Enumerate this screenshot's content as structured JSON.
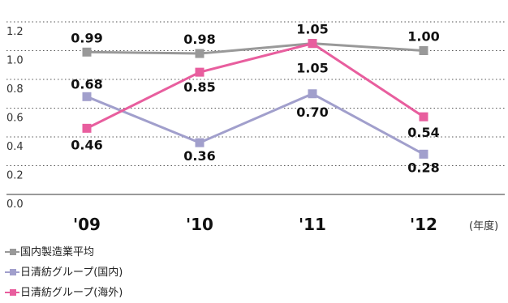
{
  "chart_data": {
    "type": "line",
    "categories": [
      "'09",
      "'10",
      "'11",
      "'12"
    ],
    "unit_label": "(年度)",
    "ylim": [
      0.0,
      1.2
    ],
    "yticks": [
      "0.0",
      "0.2",
      "0.4",
      "0.6",
      "0.8",
      "1.0",
      "1.2"
    ],
    "grid": true,
    "legend_position": "bottom-left",
    "series": [
      {
        "name": "国内製造業平均",
        "color": "#999999",
        "values": [
          0.99,
          0.98,
          1.05,
          1.0
        ],
        "labels": [
          "0.99",
          "0.98",
          "1.05",
          "1.00"
        ]
      },
      {
        "name": "日清紡グループ(国内)",
        "color": "#a19fcc",
        "values": [
          0.68,
          0.36,
          0.7,
          0.28
        ],
        "labels": [
          "0.68",
          "0.36",
          "0.70",
          "0.28"
        ]
      },
      {
        "name": "日清紡グループ(海外)",
        "color": "#e85e9e",
        "values": [
          0.46,
          0.85,
          1.05,
          0.54
        ],
        "labels": [
          "0.46",
          "0.85",
          "1.05",
          "0.54"
        ]
      }
    ]
  }
}
